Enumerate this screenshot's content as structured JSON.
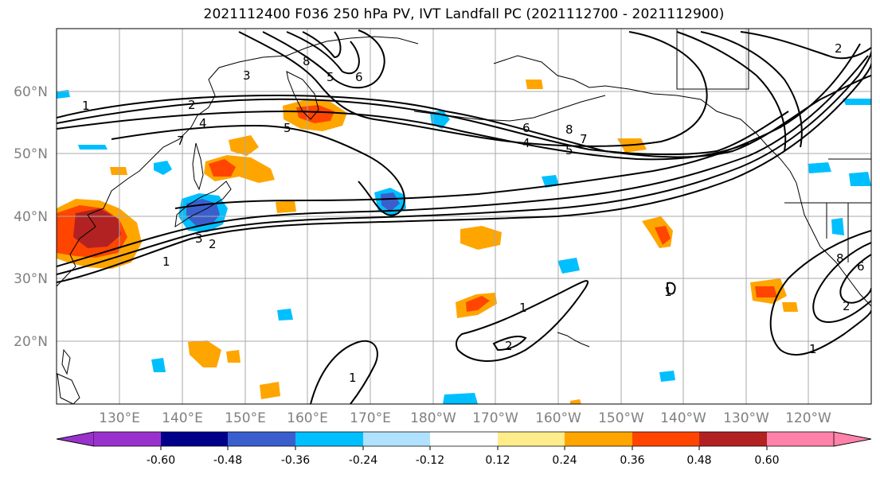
{
  "title": "2021112400 F036 250 hPa PV, IVT Landfall PC (2021112700 - 2021112900)",
  "lat_labels": [
    "60°N",
    "50°N",
    "40°N",
    "30°N",
    "20°N"
  ],
  "lon_labels": [
    "130°E",
    "140°E",
    "150°E",
    "160°E",
    "170°E",
    "180°W",
    "170°W",
    "160°W",
    "150°W",
    "140°W",
    "130°W",
    "120°W"
  ],
  "colorbar": {
    "colors": [
      "#9932cc",
      "#00008b",
      "#3a5fcd",
      "#00bfff",
      "#b0e2ff",
      "#ffffff",
      "#ffec8b",
      "#ffa500",
      "#ff4500",
      "#b22222",
      "#ff82ab"
    ],
    "tick_labels": [
      "-0.60",
      "-0.48",
      "-0.36",
      "-0.24",
      "-0.12",
      "0.12",
      "0.24",
      "0.36",
      "0.48",
      "0.60"
    ]
  },
  "contour_labels": [
    "1",
    "2",
    "3",
    "4",
    "5",
    "6",
    "7",
    "8",
    "1",
    "2",
    "3",
    "5",
    "6",
    "7",
    "8",
    "1",
    "2",
    "1",
    "1",
    "2",
    "4",
    "5",
    "6",
    "8",
    "1",
    "2"
  ]
}
